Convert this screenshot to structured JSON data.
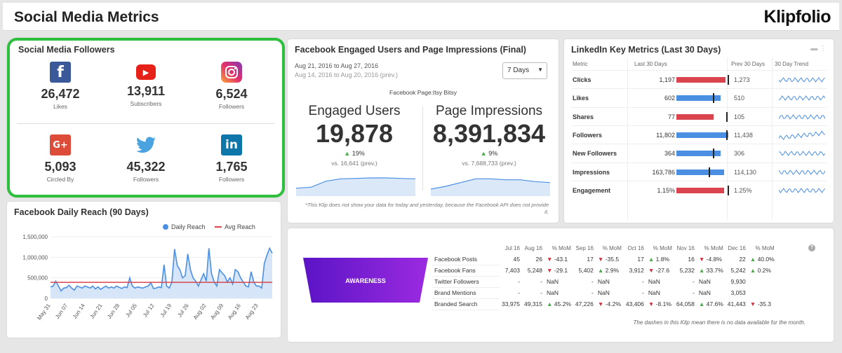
{
  "header": {
    "title": "Social Media Metrics",
    "brand": "Klipfolio"
  },
  "followers": {
    "title": "Social Media Followers",
    "items": [
      {
        "icon": "facebook-icon",
        "value": "26,472",
        "label": "Likes",
        "color": "#3b5998"
      },
      {
        "icon": "youtube-icon",
        "value": "13,911",
        "label": "Subscribers",
        "color": "#e62117"
      },
      {
        "icon": "instagram-icon",
        "value": "6,524",
        "label": "Followers",
        "color": "#c13584"
      },
      {
        "icon": "google-plus-icon",
        "value": "5,093",
        "label": "Circled By",
        "color": "#dd4b39"
      },
      {
        "icon": "twitter-icon",
        "value": "45,322",
        "label": "Followers",
        "color": "#4aa3df"
      },
      {
        "icon": "linkedin-icon",
        "value": "1,765",
        "label": "Followers",
        "color": "#0e76a8"
      }
    ]
  },
  "reach": {
    "title": "Facebook Daily Reach (90 Days)",
    "legend": {
      "series": "Daily Reach",
      "avg": "Avg Reach"
    },
    "chart_data": {
      "type": "line",
      "ylim": [
        0,
        1500000
      ],
      "yticks": [
        "0",
        "500,000",
        "1,000,000",
        "1,500,000"
      ],
      "xticks": [
        "May 31",
        "Jun 07",
        "Jun 14",
        "Jun 21",
        "Jun 28",
        "Jul 05",
        "Jul 12",
        "Jul 19",
        "Jul 26",
        "Aug 02",
        "Aug 09",
        "Aug 16",
        "Aug 23"
      ],
      "avg": 390000,
      "values": [
        280000,
        300000,
        420000,
        300000,
        180000,
        250000,
        260000,
        320000,
        250000,
        200000,
        300000,
        280000,
        250000,
        300000,
        280000,
        250000,
        300000,
        230000,
        280000,
        220000,
        260000,
        300000,
        250000,
        280000,
        250000,
        300000,
        270000,
        240000,
        280000,
        260000,
        500000,
        300000,
        250000,
        280000,
        260000,
        250000,
        280000,
        300000,
        380000,
        240000,
        250000,
        280000,
        260000,
        820000,
        300000,
        250000,
        400000,
        1200000,
        800000,
        700000,
        500000,
        550000,
        1080000,
        700000,
        500000,
        420000,
        300000,
        450000,
        600000,
        420000,
        1220000,
        600000,
        400000,
        300000,
        700000,
        620000,
        550000,
        400000,
        500000,
        350000,
        700000,
        650000,
        500000,
        400000,
        300000,
        280000,
        650000,
        400000,
        300000,
        300000,
        250000,
        850000,
        1050000,
        1220000,
        1100000
      ]
    }
  },
  "facebook": {
    "title": "Facebook Engaged Users and Page Impressions (Final)",
    "dates": "Aug 21, 2016 to Aug 27, 2016",
    "prev_dates": "Aug 14, 2016 to Aug 20, 2016 (prev.)",
    "range": "7 Days",
    "page": "Facebook Page:Itsy Bitsy",
    "engaged": {
      "label": "Engaged Users",
      "value": "19,878",
      "change": "19%",
      "prev": "vs. 16,641 (prev.)",
      "spark": [
        20,
        22,
        35,
        40,
        41,
        42,
        42,
        41,
        40
      ]
    },
    "impressions": {
      "label": "Page Impressions",
      "value": "8,391,834",
      "change": "9%",
      "prev": "vs. 7,688,733 (prev.)",
      "spark": [
        18,
        24,
        32,
        40,
        40,
        38,
        38,
        34,
        32
      ]
    },
    "note": "*This Klip does not show your data for today and yesterday, because the Facebook API does not provide it."
  },
  "linkedin": {
    "title": "LinkedIn Key Metrics (Last 30 Days)",
    "headers": {
      "metric": "Metric",
      "last": "Last 30 Days",
      "prev": "Prev 30 Days",
      "trend": "30 Day Trend"
    },
    "rows": [
      {
        "name": "Clicks",
        "last": "1,197",
        "prev": "1,273",
        "bar": 0.94,
        "mark": 1.0,
        "color": "#d9444f"
      },
      {
        "name": "Likes",
        "last": "602",
        "prev": "510",
        "bar": 0.85,
        "mark": 0.72,
        "color": "#4b8fe2"
      },
      {
        "name": "Shares",
        "last": "77",
        "prev": "105",
        "bar": 0.71,
        "mark": 0.97,
        "color": "#d9444f"
      },
      {
        "name": "Followers",
        "last": "11,802",
        "prev": "11,438",
        "bar": 1.0,
        "mark": 0.97,
        "color": "#4b8fe2"
      },
      {
        "name": "New Followers",
        "last": "364",
        "prev": "306",
        "bar": 0.85,
        "mark": 0.72,
        "color": "#4b8fe2"
      },
      {
        "name": "Impressions",
        "last": "163,786",
        "prev": "114,130",
        "bar": 0.92,
        "mark": 0.64,
        "color": "#4b8fe2"
      },
      {
        "name": "Engagement",
        "last": "1.15%",
        "prev": "1.25%",
        "bar": 0.92,
        "mark": 1.0,
        "color": "#d9444f"
      }
    ]
  },
  "awareness": {
    "banner": "AWARENESS",
    "columns": [
      "Jul 16",
      "Aug 16",
      "% MoM",
      "Sep 16",
      "% MoM",
      "Oct 16",
      "% MoM",
      "Nov 16",
      "% MoM",
      "Dec 16",
      "% MoM"
    ],
    "rows": [
      {
        "metric": "Facebook Posts",
        "cells": [
          [
            "45"
          ],
          [
            "26"
          ],
          [
            "-43.1",
            "dn"
          ],
          [
            "17"
          ],
          [
            "-35.5",
            "dn"
          ],
          [
            "17"
          ],
          [
            "1.8%",
            "up"
          ],
          [
            "16"
          ],
          [
            "-4.8%",
            "dn"
          ],
          [
            "22"
          ],
          [
            "40.0%",
            "up"
          ]
        ]
      },
      {
        "metric": "Facebook Fans",
        "cells": [
          [
            "7,403"
          ],
          [
            "5,248"
          ],
          [
            "-29.1",
            "dn"
          ],
          [
            "5,402"
          ],
          [
            "2.9%",
            "up"
          ],
          [
            "3,912"
          ],
          [
            "-27.6",
            "dn"
          ],
          [
            "5,232"
          ],
          [
            "33.7%",
            "up"
          ],
          [
            "5,242"
          ],
          [
            "0.2%",
            "up"
          ]
        ]
      },
      {
        "metric": "Twitter Followers",
        "cells": [
          [
            "-"
          ],
          [
            "-"
          ],
          [
            "NaN"
          ],
          [
            "-"
          ],
          [
            "NaN"
          ],
          [
            "-"
          ],
          [
            "NaN"
          ],
          [
            "-"
          ],
          [
            "NaN"
          ],
          [
            "9,930"
          ],
          [
            ""
          ]
        ]
      },
      {
        "metric": "Brand Mentions",
        "cells": [
          [
            "-"
          ],
          [
            "-"
          ],
          [
            "NaN"
          ],
          [
            "-"
          ],
          [
            "NaN"
          ],
          [
            "-"
          ],
          [
            "NaN"
          ],
          [
            "-"
          ],
          [
            "NaN"
          ],
          [
            "3,053"
          ],
          [
            ""
          ]
        ]
      },
      {
        "metric": "Branded Search",
        "cells": [
          [
            "33,975"
          ],
          [
            "49,315"
          ],
          [
            "45.2%",
            "up"
          ],
          [
            "47,226"
          ],
          [
            "-4.2%",
            "dn"
          ],
          [
            "43,406"
          ],
          [
            "-8.1%",
            "dn"
          ],
          [
            "64,058"
          ],
          [
            "47.6%",
            "up"
          ],
          [
            "41,443"
          ],
          [
            "-35.3",
            "dn"
          ]
        ]
      }
    ],
    "note": "The dashes in this Klip mean there is no data available for the month."
  },
  "colors": {
    "highlight": "#2fbf3f",
    "series": "#4b8fe2",
    "avg": "#d9444f",
    "banner": "#7b1fd1"
  }
}
